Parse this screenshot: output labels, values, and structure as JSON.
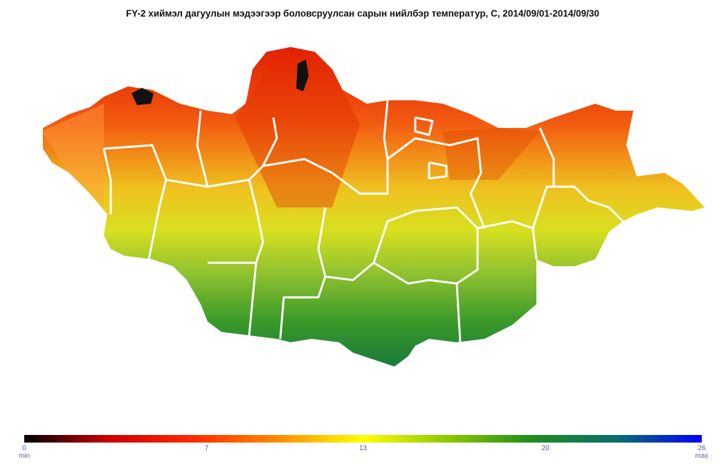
{
  "header": {
    "title": "FY-2 хиймэл дагуулын мэдээгээр боловсруулсан сарын нийлбэр температур, C, 2014/09/01-2014/09/30"
  },
  "colorbar": {
    "lim": [
      0,
      26
    ],
    "ticks": [
      0,
      7,
      13,
      20,
      26
    ],
    "min_label": "min",
    "max_label": "max",
    "colors": [
      "#000000",
      "#cc0000",
      "#ff2a00",
      "#ff8c00",
      "#ffff00",
      "#8cc800",
      "#1e8c1e",
      "#0a6e6e",
      "#0000ff"
    ]
  }
}
